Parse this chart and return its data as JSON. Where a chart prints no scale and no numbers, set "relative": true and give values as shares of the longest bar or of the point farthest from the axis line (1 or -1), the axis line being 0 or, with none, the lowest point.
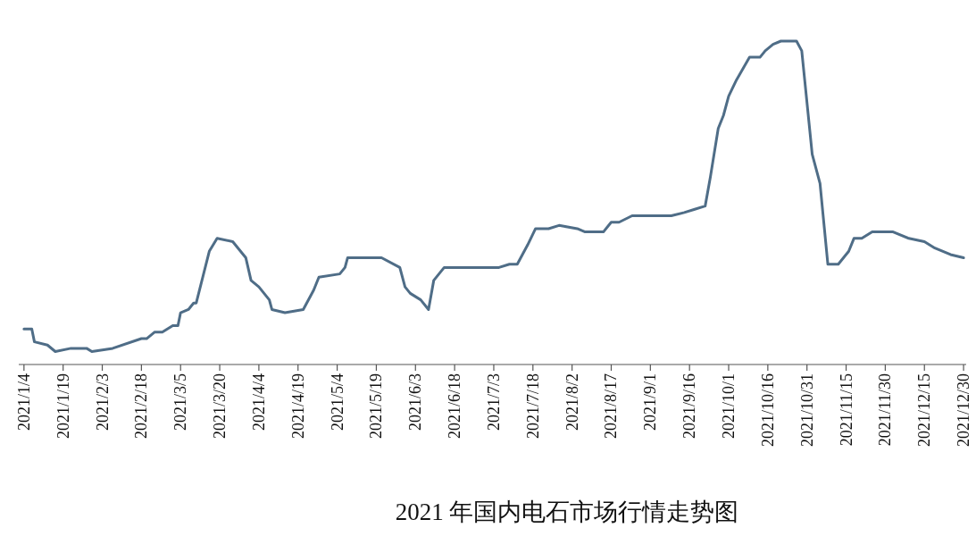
{
  "chart_data": {
    "type": "line",
    "title": "2021 年国内电石市场行情走势图",
    "relative": true,
    "x": [
      "2021-01-04",
      "2021-01-07",
      "2021-01-08",
      "2021-01-13",
      "2021-01-16",
      "2021-01-22",
      "2021-01-28",
      "2021-01-30",
      "2021-02-07",
      "2021-02-18",
      "2021-02-20",
      "2021-02-23",
      "2021-02-26",
      "2021-03-02",
      "2021-03-04",
      "2021-03-05",
      "2021-03-08",
      "2021-03-10",
      "2021-03-11",
      "2021-03-16",
      "2021-03-19",
      "2021-03-25",
      "2021-03-30",
      "2021-04-01",
      "2021-04-04",
      "2021-04-08",
      "2021-04-09",
      "2021-04-14",
      "2021-04-21",
      "2021-04-25",
      "2021-04-27",
      "2021-05-05",
      "2021-05-07",
      "2021-05-08",
      "2021-05-21",
      "2021-05-28",
      "2021-05-30",
      "2021-06-01",
      "2021-06-05",
      "2021-06-08",
      "2021-06-10",
      "2021-06-14",
      "2021-06-23",
      "2021-07-05",
      "2021-07-09",
      "2021-07-12",
      "2021-07-16",
      "2021-07-19",
      "2021-07-24",
      "2021-07-28",
      "2021-08-04",
      "2021-08-07",
      "2021-08-14",
      "2021-08-17",
      "2021-08-20",
      "2021-08-25",
      "2021-09-01",
      "2021-09-09",
      "2021-09-14",
      "2021-09-18",
      "2021-09-22",
      "2021-09-24",
      "2021-09-27",
      "2021-09-29",
      "2021-10-01",
      "2021-10-04",
      "2021-10-09",
      "2021-10-13",
      "2021-10-15",
      "2021-10-18",
      "2021-10-21",
      "2021-10-27",
      "2021-10-29",
      "2021-11-02",
      "2021-11-05",
      "2021-11-08",
      "2021-11-12",
      "2021-11-16",
      "2021-11-18",
      "2021-11-21",
      "2021-11-25",
      "2021-12-03",
      "2021-12-09",
      "2021-12-15",
      "2021-12-19",
      "2021-12-25",
      "2021-12-30"
    ],
    "series": [
      {
        "color": "#4f6d87",
        "values": [
          0.11,
          0.11,
          0.07,
          0.06,
          0.04,
          0.05,
          0.05,
          0.04,
          0.05,
          0.08,
          0.08,
          0.1,
          0.1,
          0.12,
          0.12,
          0.16,
          0.17,
          0.19,
          0.19,
          0.35,
          0.39,
          0.38,
          0.33,
          0.26,
          0.24,
          0.2,
          0.17,
          0.16,
          0.17,
          0.23,
          0.27,
          0.28,
          0.3,
          0.33,
          0.33,
          0.3,
          0.24,
          0.22,
          0.2,
          0.17,
          0.26,
          0.3,
          0.3,
          0.3,
          0.31,
          0.31,
          0.37,
          0.42,
          0.42,
          0.43,
          0.42,
          0.41,
          0.41,
          0.44,
          0.44,
          0.46,
          0.46,
          0.46,
          0.47,
          0.48,
          0.49,
          0.58,
          0.73,
          0.77,
          0.83,
          0.88,
          0.95,
          0.95,
          0.97,
          0.99,
          1.0,
          1.0,
          0.97,
          0.65,
          0.56,
          0.31,
          0.31,
          0.35,
          0.39,
          0.39,
          0.41,
          0.41,
          0.39,
          0.38,
          0.36,
          0.34,
          0.33
        ]
      }
    ],
    "xlim": [
      "2021-01-02",
      "2021-12-31"
    ],
    "xticks": [
      {
        "value": "2021-01-04",
        "label": "2021/1/4"
      },
      {
        "value": "2021-01-19",
        "label": "2021/1/19"
      },
      {
        "value": "2021-02-03",
        "label": "2021/2/3"
      },
      {
        "value": "2021-02-18",
        "label": "2021/2/18"
      },
      {
        "value": "2021-03-05",
        "label": "2021/3/5"
      },
      {
        "value": "2021-03-20",
        "label": "2021/3/20"
      },
      {
        "value": "2021-04-04",
        "label": "2021/4/4"
      },
      {
        "value": "2021-04-19",
        "label": "2021/4/19"
      },
      {
        "value": "2021-05-04",
        "label": "2021/5/4"
      },
      {
        "value": "2021-05-19",
        "label": "2021/5/19"
      },
      {
        "value": "2021-06-03",
        "label": "2021/6/3"
      },
      {
        "value": "2021-06-18",
        "label": "2021/6/18"
      },
      {
        "value": "2021-07-03",
        "label": "2021/7/3"
      },
      {
        "value": "2021-07-18",
        "label": "2021/7/18"
      },
      {
        "value": "2021-08-02",
        "label": "2021/8/2"
      },
      {
        "value": "2021-08-17",
        "label": "2021/8/17"
      },
      {
        "value": "2021-09-01",
        "label": "2021/9/1"
      },
      {
        "value": "2021-09-16",
        "label": "2021/9/16"
      },
      {
        "value": "2021-10-01",
        "label": "2021/10/1"
      },
      {
        "value": "2021-10-16",
        "label": "2021/10/16"
      },
      {
        "value": "2021-10-31",
        "label": "2021/10/31"
      },
      {
        "value": "2021-11-15",
        "label": "2021/11/15"
      },
      {
        "value": "2021-11-30",
        "label": "2021/11/30"
      },
      {
        "value": "2021-12-15",
        "label": "2021/12/15"
      },
      {
        "value": "2021-12-30",
        "label": "2021/12/30"
      }
    ],
    "tick_labels": "x",
    "grid": false,
    "marker": "none",
    "line_style": "solid"
  }
}
